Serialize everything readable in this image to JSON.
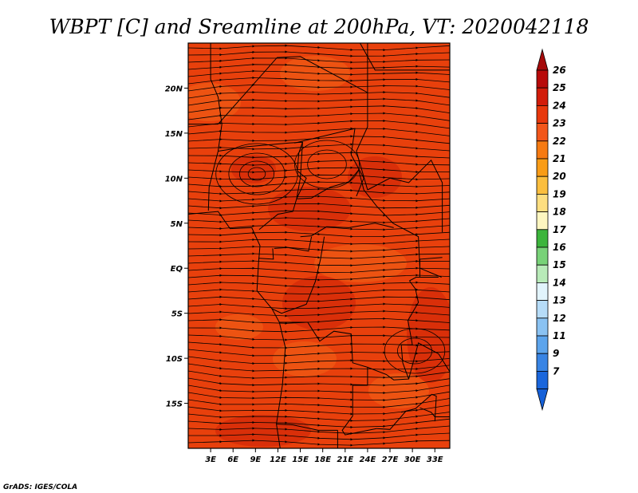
{
  "title": "WBPT [C] and Sreamline at 200hPa, VT: 2020042118",
  "credit": "GrADS: IGES/COLA",
  "map": {
    "lon_range": [
      0,
      35
    ],
    "lat_range": [
      -20,
      25
    ],
    "lon_ticks": [
      {
        "value": 3,
        "label": "3E"
      },
      {
        "value": 6,
        "label": "6E"
      },
      {
        "value": 9,
        "label": "9E"
      },
      {
        "value": 12,
        "label": "12E"
      },
      {
        "value": 15,
        "label": "15E"
      },
      {
        "value": 18,
        "label": "18E"
      },
      {
        "value": 21,
        "label": "21E"
      },
      {
        "value": 24,
        "label": "24E"
      },
      {
        "value": 27,
        "label": "27E"
      },
      {
        "value": 30,
        "label": "30E"
      },
      {
        "value": 33,
        "label": "33E"
      }
    ],
    "lat_ticks": [
      {
        "value": 20,
        "label": "20N"
      },
      {
        "value": 15,
        "label": "15N"
      },
      {
        "value": 10,
        "label": "10N"
      },
      {
        "value": 5,
        "label": "5N"
      },
      {
        "value": 0,
        "label": "EQ"
      },
      {
        "value": -5,
        "label": "5S"
      },
      {
        "value": -10,
        "label": "10S"
      },
      {
        "value": -15,
        "label": "15S"
      }
    ],
    "field_colors": {
      "base": "#e8400c",
      "light": "#ef5a14",
      "dark": "#d42a08"
    }
  },
  "colorbar": {
    "top_color": "#a50a0a",
    "bottom_color": "#1560d8",
    "bins": [
      {
        "label": "26",
        "color": "#b80a0a"
      },
      {
        "label": "25",
        "color": "#d21c0a"
      },
      {
        "label": "24",
        "color": "#e8380c"
      },
      {
        "label": "23",
        "color": "#f2561a"
      },
      {
        "label": "22",
        "color": "#f67a12"
      },
      {
        "label": "21",
        "color": "#f99c16"
      },
      {
        "label": "20",
        "color": "#fbbe3e"
      },
      {
        "label": "19",
        "color": "#fdde80"
      },
      {
        "label": "18",
        "color": "#fdf6c0"
      },
      {
        "label": "17",
        "color": "#3cb53c"
      },
      {
        "label": "16",
        "color": "#78d278"
      },
      {
        "label": "15",
        "color": "#b8eab8"
      },
      {
        "label": "14",
        "color": "#e2f4fc"
      },
      {
        "label": "13",
        "color": "#b6dcf8"
      },
      {
        "label": "12",
        "color": "#8ac2f2"
      },
      {
        "label": "11",
        "color": "#5ca4ec"
      },
      {
        "label": "9",
        "color": "#3884e4"
      },
      {
        "label": "7",
        "color": "#1a66dc"
      }
    ]
  }
}
